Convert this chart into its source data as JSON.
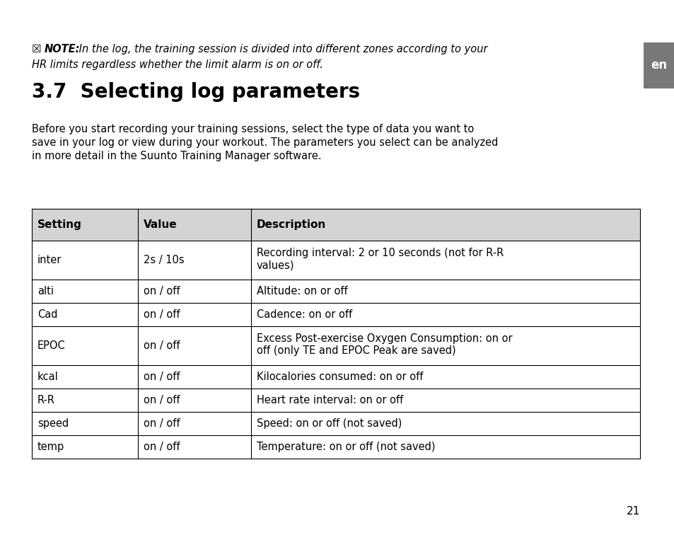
{
  "bg_color": "#ffffff",
  "page_number": "21",
  "tab_label": "en",
  "tab_bg": "#787878",
  "tab_text_color": "#ffffff",
  "note_bold": "NOTE:",
  "note_line1": " In the log, the training session is divided into different zones according to your",
  "note_line2": "HR limits regardless whether the limit alarm is on or off.",
  "section_title": "3.7  Selecting log parameters",
  "body_line1": "Before you start recording your training sessions, select the type of data you want to",
  "body_line2": "save in your log or view during your workout. The parameters you select can be analyzed",
  "body_line3": "in more detail in the Suunto Training Manager software.",
  "table_header": [
    "Setting",
    "Value",
    "Description"
  ],
  "table_header_bg": "#d4d4d4",
  "table_rows": [
    [
      "inter",
      "2s / 10s",
      "Recording interval: 2 or 10 seconds (not for R-R\nvalues)"
    ],
    [
      "alti",
      "on / off",
      "Altitude: on or off"
    ],
    [
      "Cad",
      "on / off",
      "Cadence: on or off"
    ],
    [
      "EPOC",
      "on / off",
      "Excess Post-exercise Oxygen Consumption: on or\noff (only TE and EPOC Peak are saved)"
    ],
    [
      "kcal",
      "on / off",
      "Kilocalories consumed: on or off"
    ],
    [
      "R-R",
      "on / off",
      "Heart rate interval: on or off"
    ],
    [
      "speed",
      "on / off",
      "Speed: on or off (not saved)"
    ],
    [
      "temp",
      "on / off",
      "Temperature: on or off (not saved)"
    ]
  ],
  "font_size_body": 10.5,
  "font_size_section": 20,
  "font_size_note": 10.5,
  "font_size_table_header": 11,
  "font_size_table_body": 10.5
}
